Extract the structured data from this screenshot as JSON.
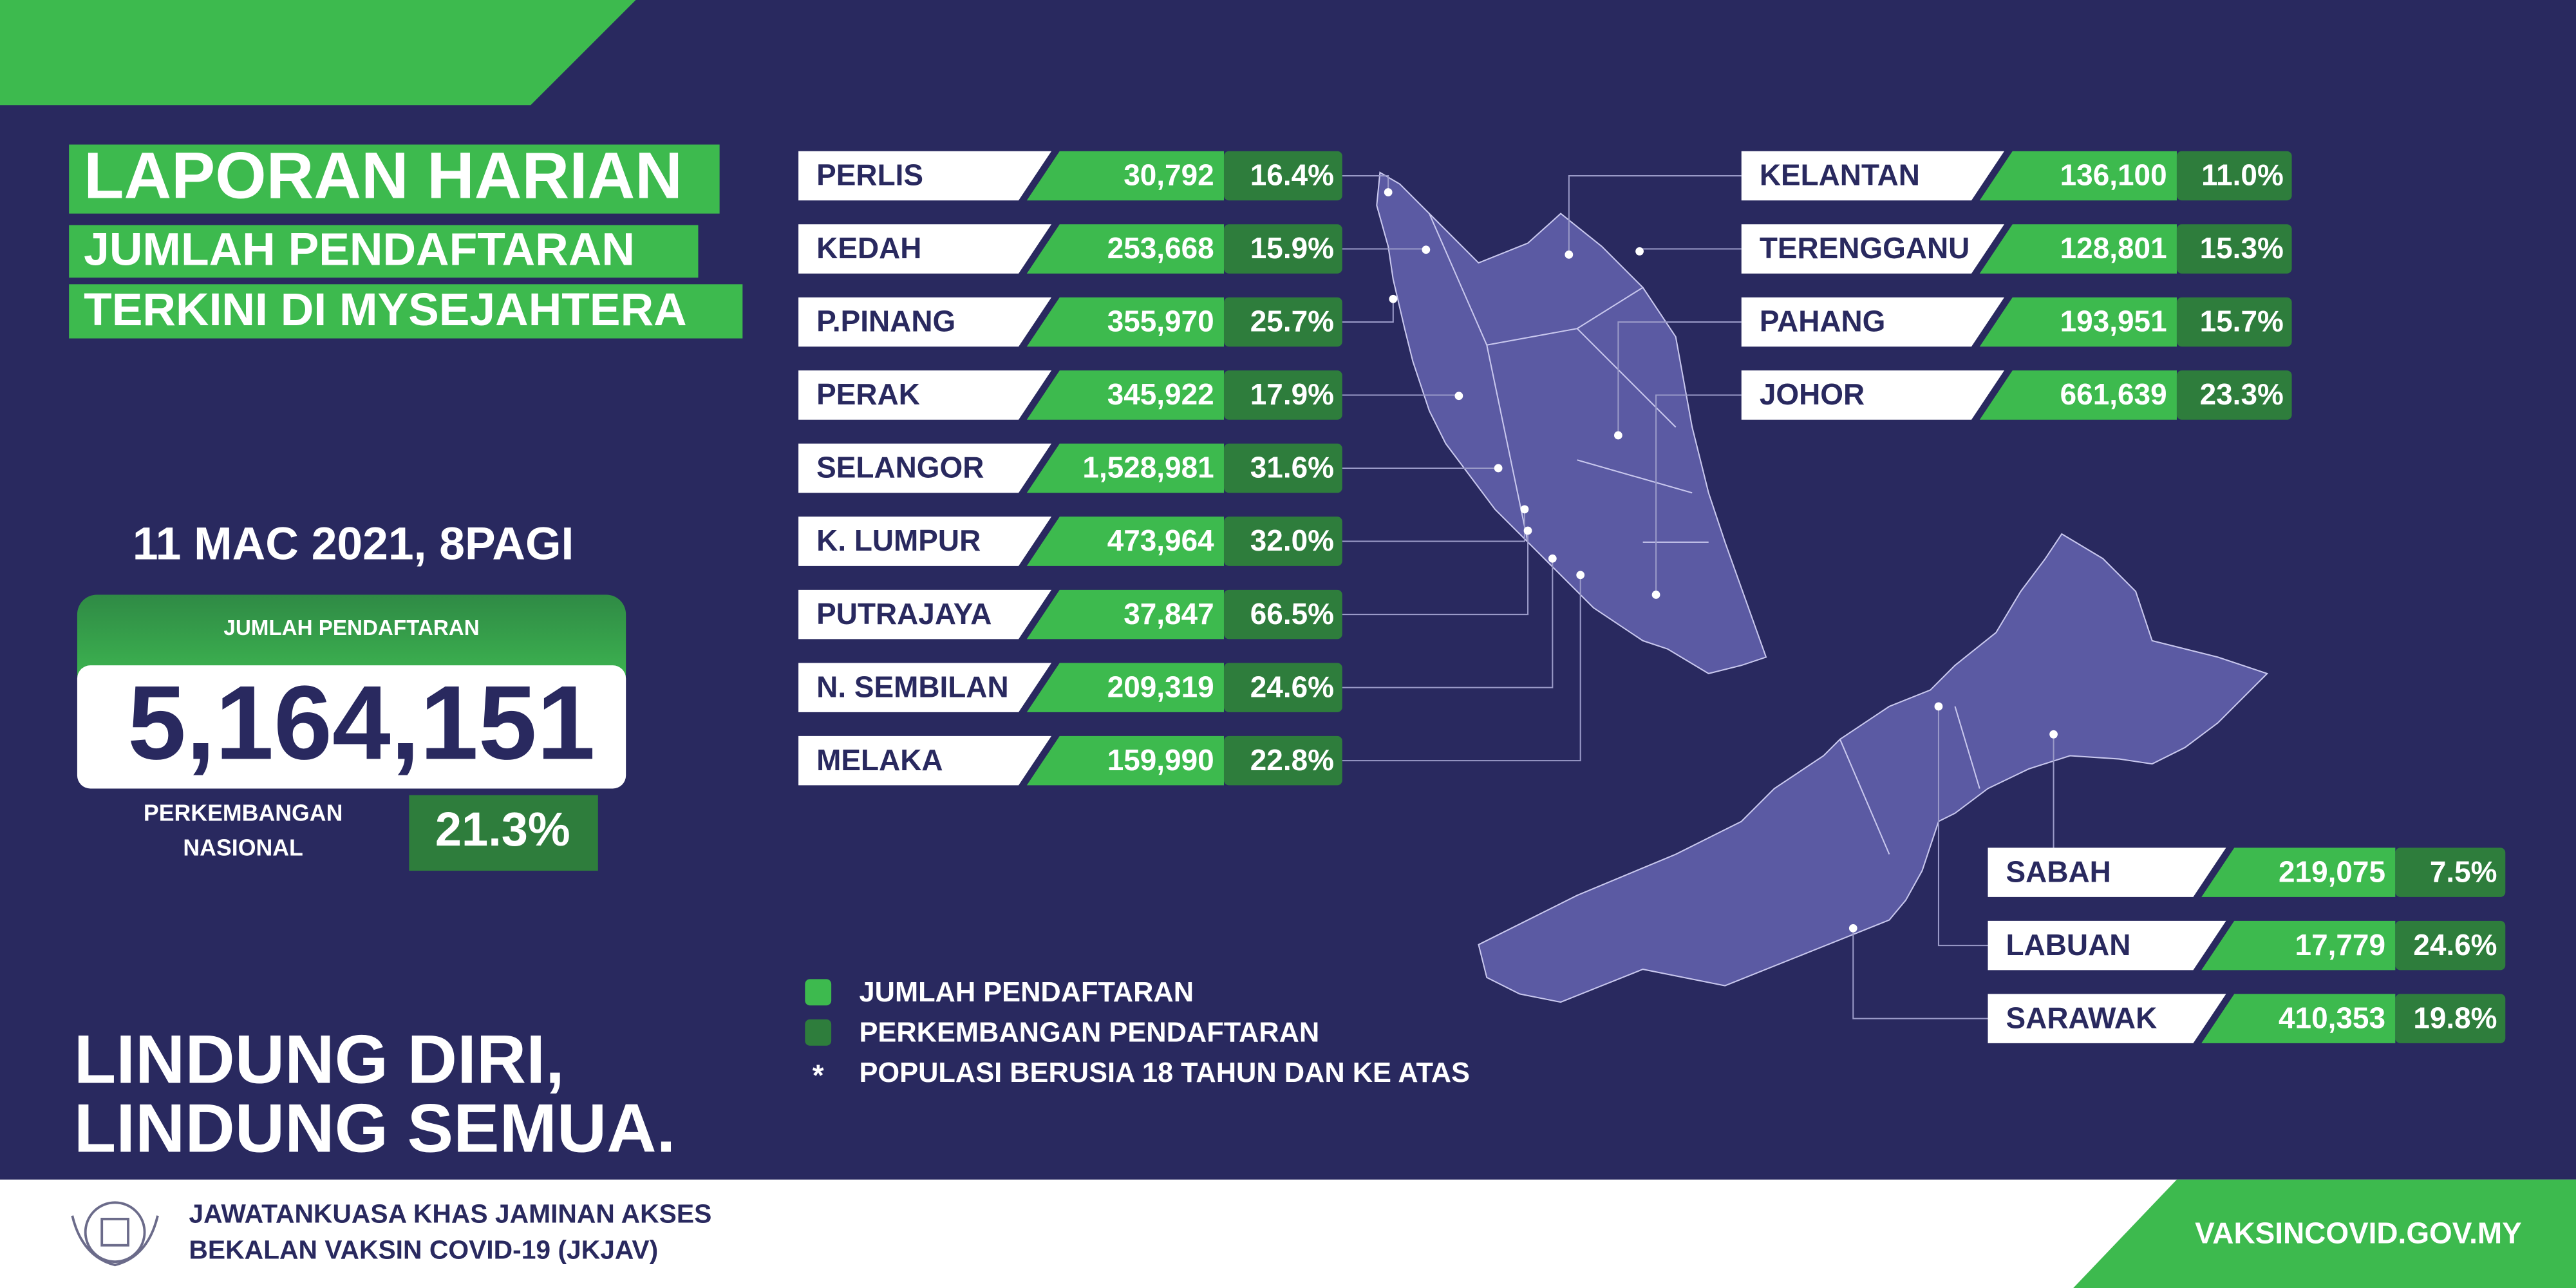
{
  "header": {
    "tag_lines": [
      "LAPORAN HARIAN",
      "JUMLAH PENDAFTARAN",
      "TERKINI DI MYSEJAHTERA"
    ]
  },
  "summary": {
    "date": "11 MAC 2021, 8PAGI",
    "total_label": "JUMLAH PENDAFTARAN",
    "total": "5,164,151",
    "growth_label": [
      "PERKEMBANGAN",
      "NASIONAL"
    ],
    "growth": "21.3%"
  },
  "states": {
    "peninsula_west": [
      {
        "name": "PERLIS",
        "registrations": "30,792",
        "growth": "16.4%"
      },
      {
        "name": "KEDAH",
        "registrations": "253,668",
        "growth": "15.9%"
      },
      {
        "name": "P.PINANG",
        "registrations": "355,970",
        "growth": "25.7%"
      },
      {
        "name": "PERAK",
        "registrations": "345,922",
        "growth": "17.9%"
      },
      {
        "name": "SELANGOR",
        "registrations": "1,528,981",
        "growth": "31.6%"
      },
      {
        "name": "K. LUMPUR",
        "registrations": "473,964",
        "growth": "32.0%"
      },
      {
        "name": "PUTRAJAYA",
        "registrations": "37,847",
        "growth": "66.5%"
      },
      {
        "name": "N. SEMBILAN",
        "registrations": "209,319",
        "growth": "24.6%"
      },
      {
        "name": "MELAKA",
        "registrations": "159,990",
        "growth": "22.8%"
      }
    ],
    "peninsula_east": [
      {
        "name": "KELANTAN",
        "registrations": "136,100",
        "growth": "11.0%"
      },
      {
        "name": "TERENGGANU",
        "registrations": "128,801",
        "growth": "15.3%"
      },
      {
        "name": "PAHANG",
        "registrations": "193,951",
        "growth": "15.7%"
      },
      {
        "name": "JOHOR",
        "registrations": "661,639",
        "growth": "23.3%"
      }
    ],
    "borneo": [
      {
        "name": "SABAH",
        "registrations": "219,075",
        "growth": "7.5%"
      },
      {
        "name": "LABUAN",
        "registrations": "17,779",
        "growth": "24.6%"
      },
      {
        "name": "SARAWAK",
        "registrations": "410,353",
        "growth": "19.8%"
      }
    ]
  },
  "legend": [
    {
      "text": "JUMLAH PENDAFTARAN"
    },
    {
      "text": "PERKEMBANGAN PENDAFTARAN"
    },
    {
      "symbol": "*",
      "text": "POPULASI BERUSIA 18 TAHUN DAN KE ATAS"
    }
  ],
  "slogan": [
    "LINDUNG DIRI,",
    "LINDUNG SEMUA."
  ],
  "footer": {
    "committee": [
      "JAWATANKUASA KHAS JAMINAN AKSES",
      "BEKALAN VAKSIN COVID-19 (JKJAV)"
    ],
    "website": "VAKSINCOVID.GOV.MY"
  }
}
